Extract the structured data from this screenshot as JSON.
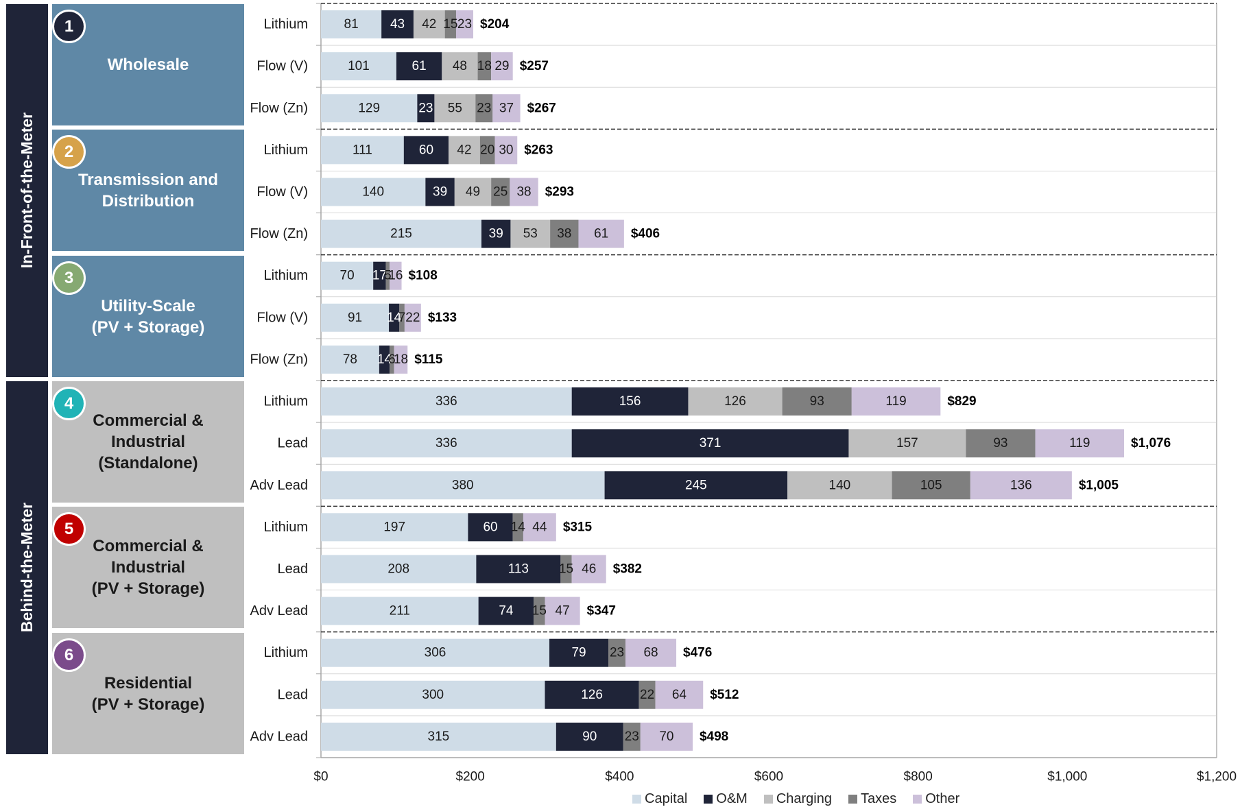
{
  "sections": [
    {
      "label": "In-Front-of-the-Meter"
    },
    {
      "label": "Behind-the-Meter"
    }
  ],
  "chart_data": {
    "type": "bar",
    "orientation": "horizontal",
    "stacked": true,
    "xlim": [
      0,
      1200
    ],
    "xticks": [
      0,
      200,
      400,
      600,
      800,
      1000,
      1200
    ],
    "xtick_labels": [
      "$0",
      "$200",
      "$400",
      "$600",
      "$800",
      "$1,000",
      "$1,200"
    ],
    "legend": "bottom",
    "series": [
      {
        "name": "Capital",
        "color": "#cfdce7",
        "label_color": "#1a1a1a"
      },
      {
        "name": "O&M",
        "color": "#1f2438",
        "label_color": "#ffffff"
      },
      {
        "name": "Charging",
        "color": "#bfbfbf",
        "label_color": "#1a1a1a"
      },
      {
        "name": "Taxes",
        "color": "#7f7f7f",
        "label_color": "#1a1a1a"
      },
      {
        "name": "Other",
        "color": "#ccc0da",
        "label_color": "#1a1a1a"
      }
    ],
    "groups": [
      {
        "number": "1",
        "label_lines": [
          "Wholesale"
        ],
        "circle_color": "#1f2438",
        "box_color": "#5f88a6",
        "text_color": "#ffffff",
        "rows": [
          {
            "label": "Lithium",
            "values": [
              81,
              43,
              42,
              15,
              23
            ],
            "total": "$204"
          },
          {
            "label": "Flow (V)",
            "values": [
              101,
              61,
              48,
              18,
              29
            ],
            "total": "$257"
          },
          {
            "label": "Flow (Zn)",
            "values": [
              129,
              23,
              55,
              23,
              37
            ],
            "total": "$267"
          }
        ]
      },
      {
        "number": "2",
        "label_lines": [
          "Transmission and",
          "Distribution"
        ],
        "circle_color": "#d6a24a",
        "box_color": "#5f88a6",
        "text_color": "#ffffff",
        "rows": [
          {
            "label": "Lithium",
            "values": [
              111,
              60,
              42,
              20,
              30
            ],
            "total": "$263"
          },
          {
            "label": "Flow (V)",
            "values": [
              140,
              39,
              49,
              25,
              38
            ],
            "total": "$293"
          },
          {
            "label": "Flow (Zn)",
            "values": [
              215,
              39,
              53,
              38,
              61
            ],
            "total": "$406"
          }
        ]
      },
      {
        "number": "3",
        "label_lines": [
          "Utility-Scale",
          "(PV + Storage)"
        ],
        "circle_color": "#86a972",
        "box_color": "#5f88a6",
        "text_color": "#ffffff",
        "rows": [
          {
            "label": "Lithium",
            "values": [
              70,
              17,
              null,
              5,
              16
            ],
            "total": "$108"
          },
          {
            "label": "Flow (V)",
            "values": [
              91,
              14,
              null,
              7,
              22
            ],
            "total": "$133"
          },
          {
            "label": "Flow (Zn)",
            "values": [
              78,
              14,
              null,
              6,
              18
            ],
            "total": "$115"
          }
        ]
      },
      {
        "number": "4",
        "label_lines": [
          "Commercial &",
          "Industrial",
          "(Standalone)"
        ],
        "circle_color": "#20b3b6",
        "box_color": "#bfbfbf",
        "text_color": "#1a1a1a",
        "rows": [
          {
            "label": "Lithium",
            "values": [
              336,
              156,
              126,
              93,
              119
            ],
            "total": "$829"
          },
          {
            "label": "Lead",
            "values": [
              336,
              371,
              157,
              93,
              119
            ],
            "total": "$1,076"
          },
          {
            "label": "Adv Lead",
            "values": [
              380,
              245,
              140,
              105,
              136
            ],
            "total": "$1,005"
          }
        ]
      },
      {
        "number": "5",
        "label_lines": [
          "Commercial &",
          "Industrial",
          "(PV + Storage)"
        ],
        "circle_color": "#c00000",
        "box_color": "#bfbfbf",
        "text_color": "#1a1a1a",
        "rows": [
          {
            "label": "Lithium",
            "values": [
              197,
              60,
              null,
              14,
              44
            ],
            "total": "$315"
          },
          {
            "label": "Lead",
            "values": [
              208,
              113,
              null,
              15,
              46
            ],
            "total": "$382"
          },
          {
            "label": "Adv Lead",
            "values": [
              211,
              74,
              null,
              15,
              47
            ],
            "total": "$347"
          }
        ]
      },
      {
        "number": "6",
        "label_lines": [
          "Residential",
          "(PV + Storage)"
        ],
        "circle_color": "#7b4b8b",
        "box_color": "#bfbfbf",
        "text_color": "#1a1a1a",
        "rows": [
          {
            "label": "Lithium",
            "values": [
              306,
              79,
              null,
              23,
              68
            ],
            "total": "$476"
          },
          {
            "label": "Lead",
            "values": [
              300,
              126,
              null,
              22,
              64
            ],
            "total": "$512"
          },
          {
            "label": "Adv Lead",
            "values": [
              315,
              90,
              null,
              23,
              70
            ],
            "total": "$498"
          }
        ]
      }
    ]
  }
}
